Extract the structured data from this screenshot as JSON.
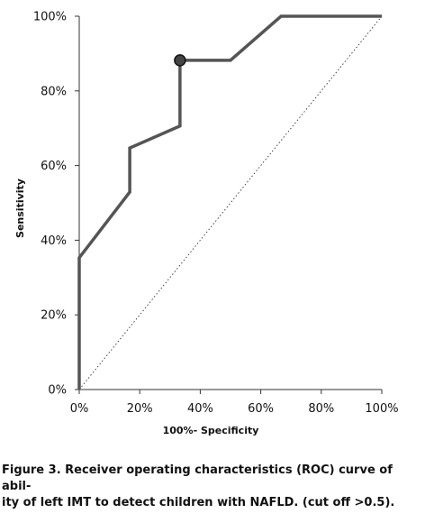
{
  "chart_data": {
    "type": "line",
    "xlabel": "100%- Specificity",
    "ylabel": "Sensitivity",
    "xlim": [
      0,
      100
    ],
    "ylim": [
      0,
      100
    ],
    "x_ticks": [
      "0%",
      "20%",
      "40%",
      "60%",
      "80%",
      "100%"
    ],
    "y_ticks": [
      "0%",
      "20%",
      "40%",
      "60%",
      "80%",
      "100%"
    ],
    "grid": false,
    "series": [
      {
        "color": "#555555",
        "x": [
          0,
          0,
          16.7,
          16.7,
          33.3,
          33.3,
          50,
          66.7,
          100
        ],
        "y": [
          0,
          35.3,
          52.9,
          64.7,
          70.6,
          88.2,
          88.2,
          100,
          100
        ]
      }
    ],
    "reference_line": {
      "x": [
        0,
        100
      ],
      "y": [
        0,
        100
      ],
      "style": "dotted"
    },
    "cutoff_point": {
      "x": 33.3,
      "y": 88.2,
      "color": "#444444"
    }
  },
  "caption": "Figure 3. Receiver operating characteristics (ROC) curve of abil-\nity of left IMT to detect children with NAFLD. (cut off >0.5)."
}
